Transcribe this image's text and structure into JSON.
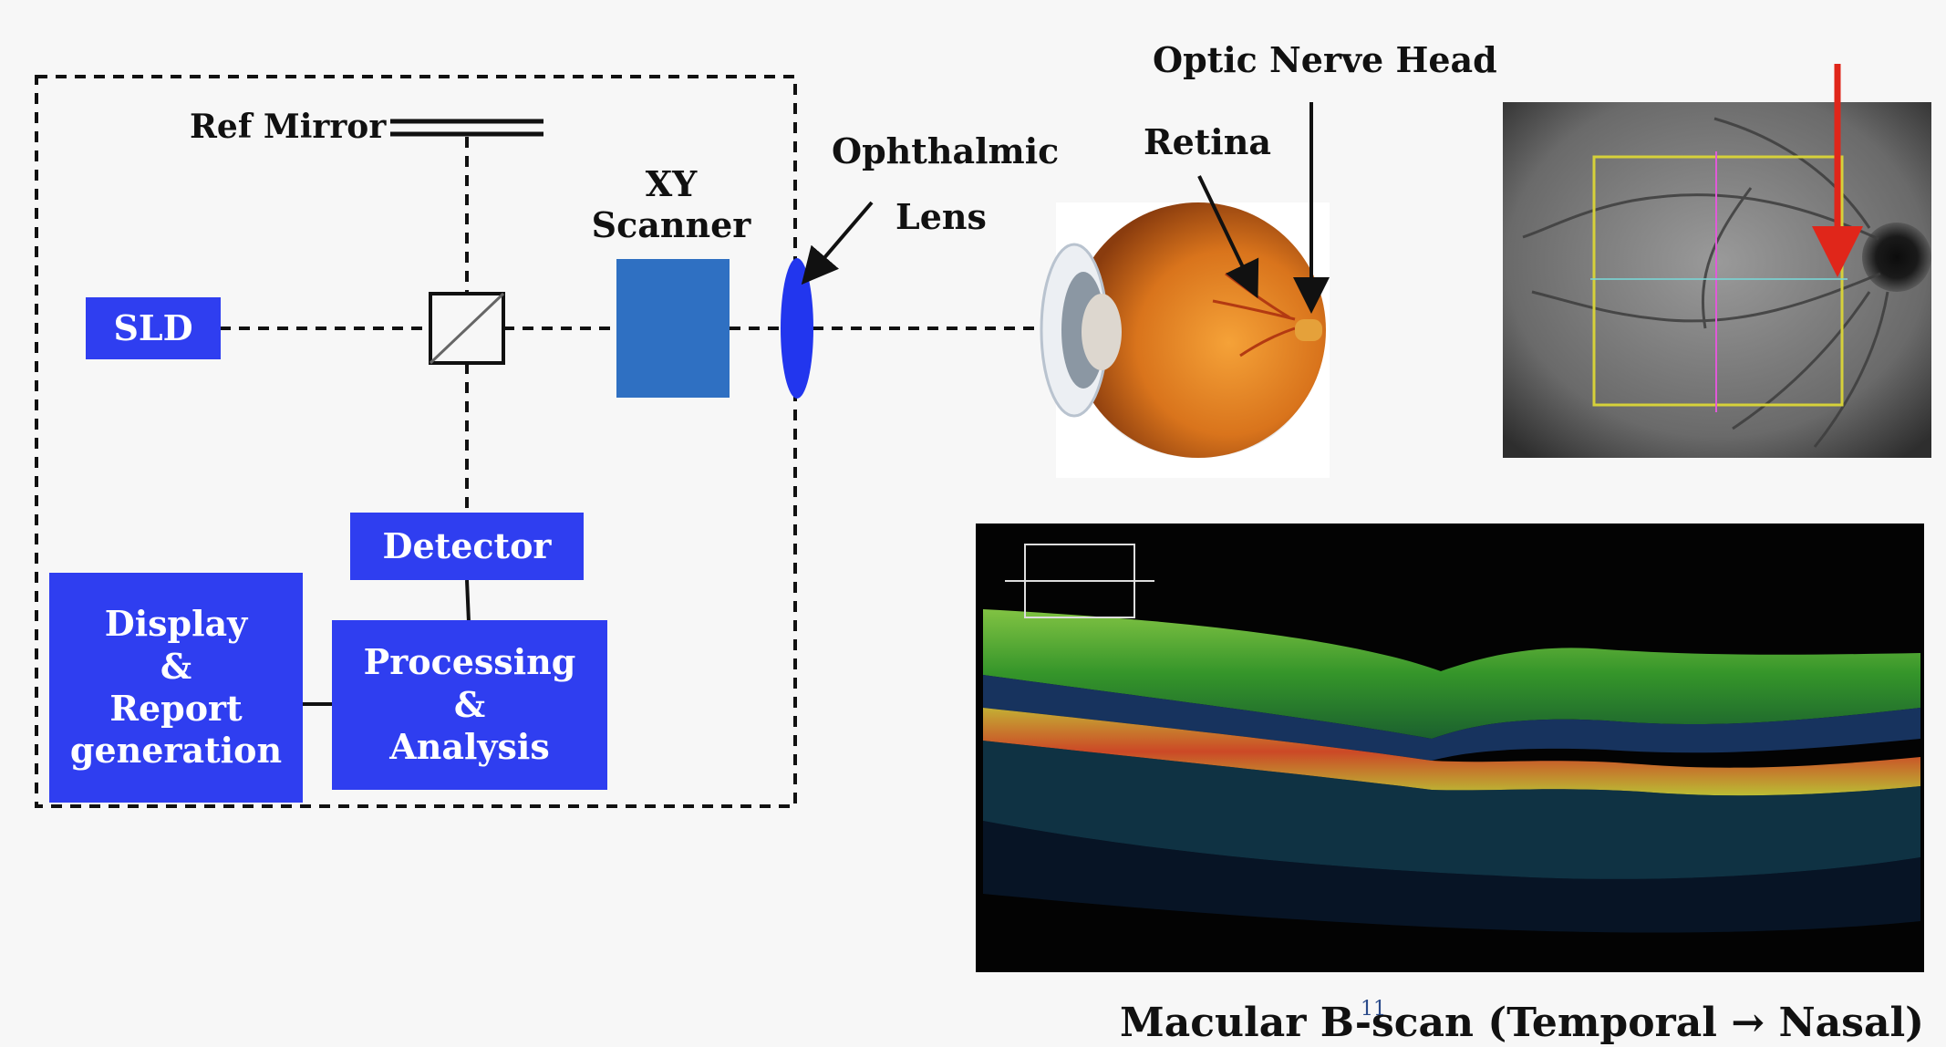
{
  "labels": {
    "ref_mirror": "Ref Mirror",
    "xy_scanner_line1": "XY",
    "xy_scanner_line2": "Scanner",
    "ophthalmic_line1": "Ophthalmic",
    "ophthalmic_line2": "Lens",
    "retina": "Retina",
    "optic_nerve_head": "Optic Nerve Head",
    "caption": "Macular B-scan (Temporal → Nasal)",
    "page_number": "11"
  },
  "boxes": {
    "sld": "SLD",
    "detector": "Detector",
    "processing_line1": "Processing",
    "processing_line2": "&",
    "processing_line3": "Analysis",
    "display_line1": "Display",
    "display_line2": "&",
    "display_line3": "Report",
    "display_line4": "generation"
  },
  "colors": {
    "component_blue": "#2f3ef0",
    "scanner_blue": "#2f70c2",
    "arrow_red": "#e0261a",
    "fundus_box": "#d6d13a"
  }
}
